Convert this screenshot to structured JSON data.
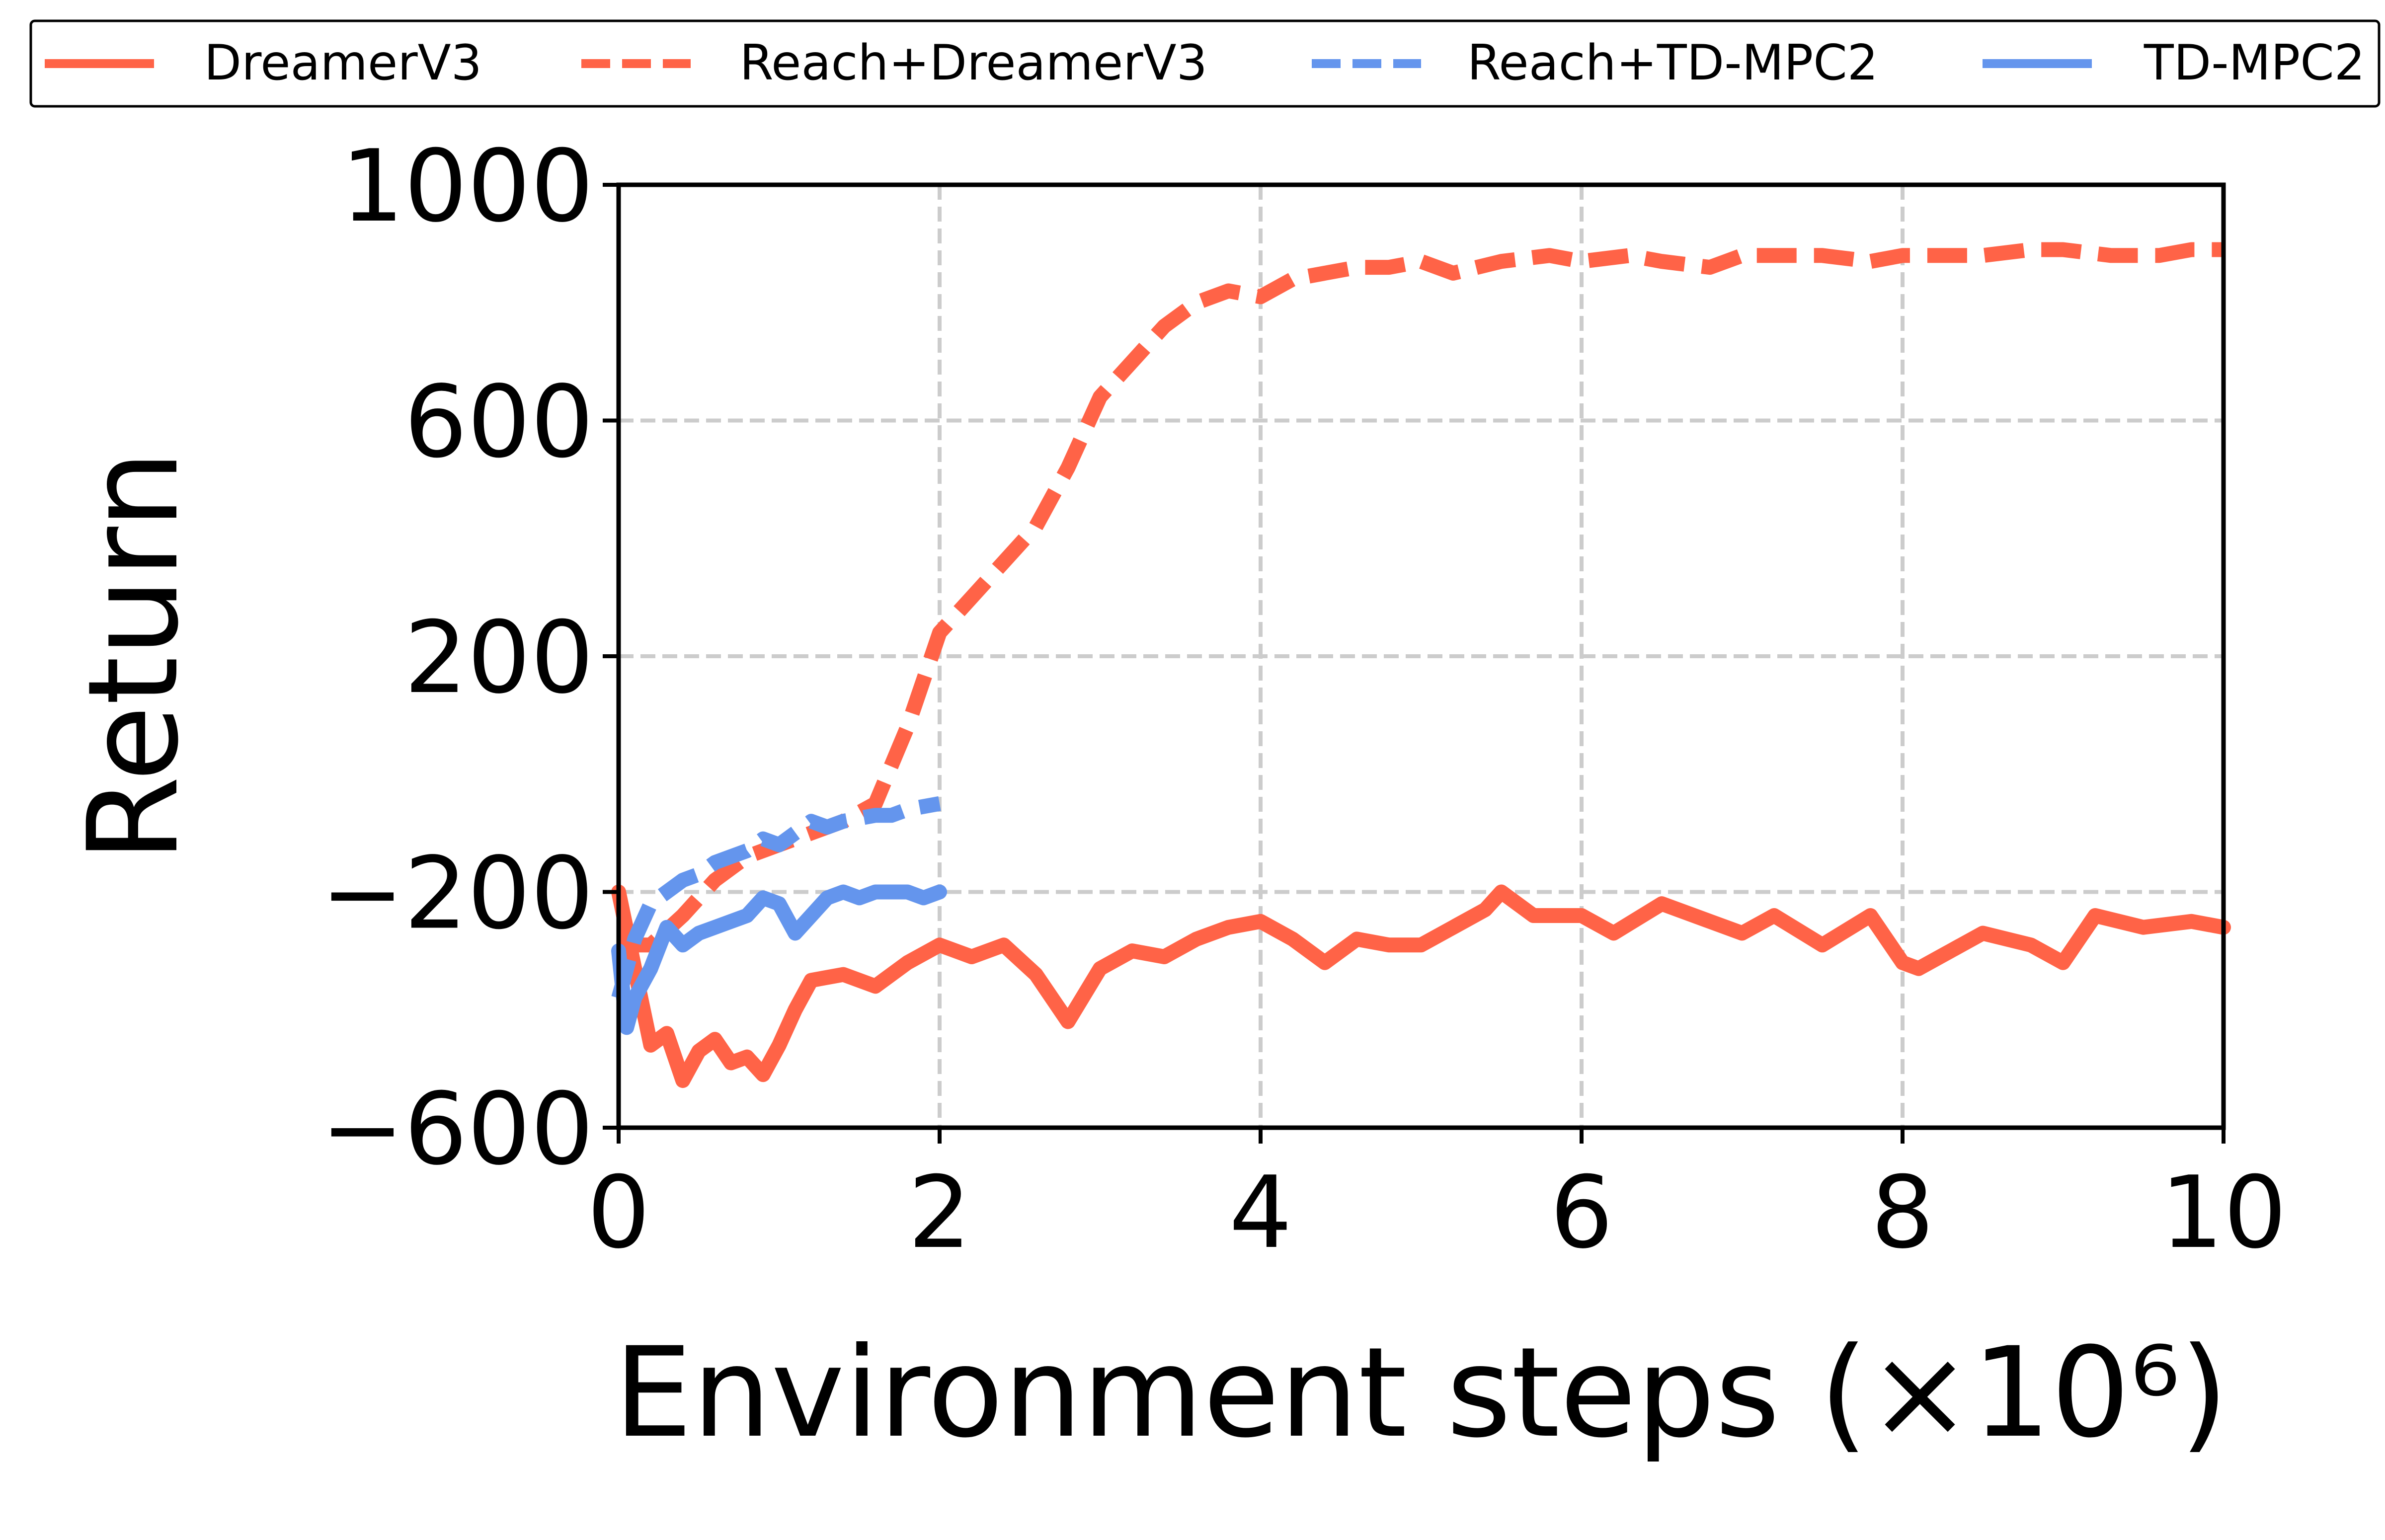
{
  "chart_data": {
    "type": "line",
    "xlabel": "Environment steps (×10⁶)",
    "ylabel": "Return",
    "xlim": [
      0,
      10
    ],
    "ylim": [
      -600,
      1000
    ],
    "xticks": [
      0,
      2,
      4,
      6,
      8,
      10
    ],
    "yticks": [
      -600,
      -200,
      200,
      600,
      1000
    ],
    "ytick_labels": [
      "−600",
      "−200",
      "200",
      "600",
      "1000"
    ],
    "grid": true,
    "legend_position": "top",
    "series": [
      {
        "name": "DreamerV3",
        "color": "#FF6347",
        "dash": "solid",
        "x": [
          0,
          0.1,
          0.2,
          0.3,
          0.4,
          0.5,
          0.6,
          0.7,
          0.8,
          0.9,
          1.0,
          1.1,
          1.2,
          1.4,
          1.6,
          1.8,
          2.0,
          2.2,
          2.4,
          2.6,
          2.8,
          3.0,
          3.2,
          3.4,
          3.6,
          3.8,
          4.0,
          4.2,
          4.4,
          4.6,
          4.8,
          5.0,
          5.2,
          5.4,
          5.5,
          5.7,
          6.0,
          6.2,
          6.5,
          6.8,
          7.0,
          7.2,
          7.5,
          7.8,
          8.0,
          8.1,
          8.3,
          8.5,
          8.8,
          9.0,
          9.2,
          9.5,
          9.8,
          10.0
        ],
        "y": [
          -200,
          -330,
          -460,
          -440,
          -520,
          -470,
          -450,
          -490,
          -480,
          -510,
          -460,
          -400,
          -350,
          -340,
          -360,
          -320,
          -290,
          -310,
          -290,
          -340,
          -420,
          -330,
          -300,
          -310,
          -280,
          -260,
          -250,
          -280,
          -320,
          -280,
          -290,
          -290,
          -260,
          -230,
          -200,
          -240,
          -240,
          -270,
          -220,
          -250,
          -270,
          -240,
          -290,
          -240,
          -320,
          -330,
          -300,
          -270,
          -290,
          -320,
          -240,
          -260,
          -250,
          -260
        ]
      },
      {
        "name": "Reach+DreamerV3",
        "color": "#FF6347",
        "dash": "dashed",
        "x": [
          0,
          0.2,
          0.4,
          0.6,
          0.8,
          1.0,
          1.2,
          1.4,
          1.6,
          1.8,
          2.0,
          2.2,
          2.4,
          2.6,
          2.8,
          3.0,
          3.2,
          3.4,
          3.6,
          3.8,
          4.0,
          4.2,
          4.4,
          4.6,
          4.8,
          5.0,
          5.2,
          5.5,
          5.8,
          6.0,
          6.3,
          6.5,
          6.8,
          7.0,
          7.2,
          7.5,
          7.8,
          8.0,
          8.2,
          8.5,
          8.8,
          9.0,
          9.3,
          9.6,
          9.8,
          10.0
        ],
        "y": [
          -290,
          -290,
          -240,
          -180,
          -140,
          -120,
          -100,
          -80,
          -50,
          80,
          240,
          300,
          360,
          420,
          520,
          640,
          700,
          760,
          800,
          820,
          810,
          840,
          850,
          860,
          860,
          870,
          850,
          870,
          880,
          870,
          880,
          870,
          860,
          880,
          880,
          880,
          870,
          880,
          880,
          880,
          890,
          890,
          880,
          880,
          890,
          890
        ]
      },
      {
        "name": "Reach+TD-MPC2",
        "color": "#6495ED",
        "dash": "dashed",
        "x": [
          0,
          0.1,
          0.2,
          0.3,
          0.4,
          0.5,
          0.6,
          0.7,
          0.8,
          0.9,
          1.0,
          1.1,
          1.2,
          1.3,
          1.4,
          1.5,
          1.6,
          1.7,
          1.8,
          1.9,
          2.0
        ],
        "y": [
          -380,
          -280,
          -220,
          -200,
          -180,
          -170,
          -150,
          -140,
          -130,
          -110,
          -120,
          -100,
          -80,
          -90,
          -80,
          -75,
          -70,
          -70,
          -60,
          -55,
          -50
        ]
      },
      {
        "name": "TD-MPC2",
        "color": "#6495ED",
        "dash": "solid",
        "x": [
          0,
          0.05,
          0.1,
          0.2,
          0.3,
          0.4,
          0.5,
          0.6,
          0.7,
          0.8,
          0.9,
          1.0,
          1.1,
          1.2,
          1.3,
          1.4,
          1.5,
          1.6,
          1.7,
          1.8,
          1.9,
          2.0
        ],
        "y": [
          -300,
          -430,
          -380,
          -330,
          -260,
          -290,
          -270,
          -260,
          -250,
          -240,
          -210,
          -220,
          -270,
          -240,
          -210,
          -200,
          -210,
          -200,
          -200,
          -200,
          -210,
          -200
        ]
      }
    ]
  }
}
